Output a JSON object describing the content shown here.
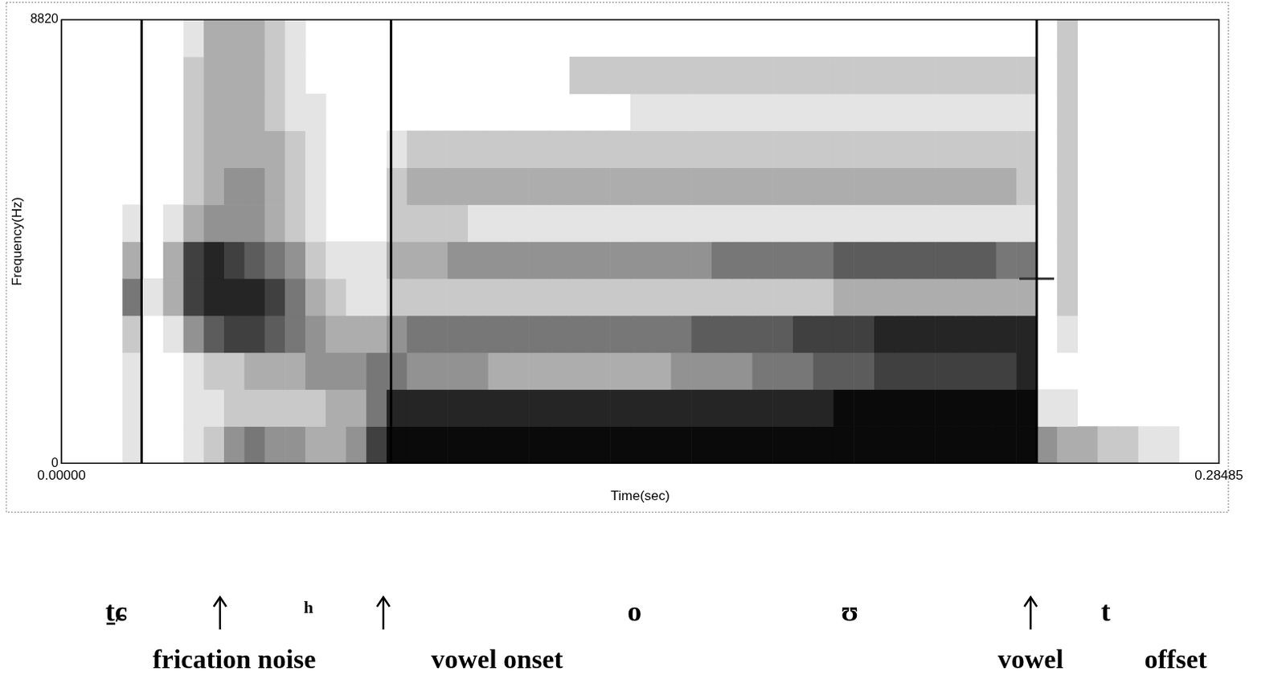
{
  "chart_data": {
    "type": "heatmap",
    "x_label": "Time(sec)",
    "y_label": "Frequency(Hz)",
    "xlim": [
      0,
      0.28485
    ],
    "ylim": [
      0,
      8820
    ],
    "xticks": [
      {
        "value": 0,
        "label": "0.00000"
      },
      {
        "value": 0.28485,
        "label": "0.28485"
      }
    ],
    "yticks": [
      0,
      8820
    ],
    "grid": false,
    "color": "#000000",
    "zlim": [
      0,
      9
    ],
    "time_edges": [
      0,
      0.005,
      0.01,
      0.015,
      0.02,
      0.025,
      0.03,
      0.035,
      0.04,
      0.045,
      0.05,
      0.055,
      0.06,
      0.065,
      0.07,
      0.075,
      0.08,
      0.085,
      0.09,
      0.095,
      0.1,
      0.105,
      0.11,
      0.115,
      0.12,
      0.125,
      0.13,
      0.135,
      0.14,
      0.145,
      0.15,
      0.155,
      0.16,
      0.165,
      0.17,
      0.175,
      0.18,
      0.185,
      0.19,
      0.195,
      0.2,
      0.205,
      0.21,
      0.215,
      0.22,
      0.225,
      0.23,
      0.235,
      0.24,
      0.245,
      0.25,
      0.255,
      0.26,
      0.265,
      0.27,
      0.275,
      0.28,
      0.285
    ],
    "freq_edges": [
      0,
      735,
      1470,
      2205,
      2940,
      3675,
      4410,
      5145,
      5880,
      6615,
      7350,
      8085,
      8820
    ],
    "cells": [
      [
        0,
        0,
        0,
        1,
        0,
        0,
        1,
        2,
        4,
        5,
        4,
        4,
        3,
        3,
        4,
        7,
        9,
        9,
        9,
        9,
        9,
        9,
        9,
        9,
        9,
        9,
        9,
        9,
        9,
        9,
        9,
        9,
        9,
        9,
        9,
        9,
        9,
        9,
        9,
        9,
        9,
        9,
        9,
        9,
        9,
        9,
        9,
        9,
        4,
        3,
        3,
        2,
        2,
        1,
        1,
        0,
        0
      ],
      [
        0,
        0,
        0,
        1,
        0,
        0,
        1,
        1,
        2,
        2,
        2,
        2,
        2,
        3,
        3,
        5,
        8,
        8,
        8,
        8,
        8,
        8,
        8,
        8,
        8,
        8,
        8,
        8,
        8,
        8,
        8,
        8,
        8,
        8,
        8,
        8,
        8,
        8,
        9,
        9,
        9,
        9,
        9,
        9,
        9,
        9,
        9,
        9,
        1,
        1,
        0,
        0,
        0,
        0,
        0,
        0,
        0
      ],
      [
        0,
        0,
        0,
        1,
        0,
        0,
        1,
        2,
        2,
        3,
        3,
        3,
        4,
        4,
        4,
        5,
        5,
        4,
        4,
        4,
        4,
        3,
        3,
        3,
        3,
        3,
        3,
        3,
        3,
        3,
        4,
        4,
        4,
        4,
        5,
        5,
        5,
        6,
        6,
        6,
        7,
        7,
        7,
        7,
        7,
        7,
        7,
        8,
        0,
        0,
        0,
        0,
        0,
        0,
        0,
        0,
        0
      ],
      [
        0,
        0,
        0,
        2,
        0,
        1,
        4,
        6,
        7,
        7,
        6,
        5,
        4,
        3,
        3,
        3,
        4,
        5,
        5,
        5,
        5,
        5,
        5,
        5,
        5,
        5,
        5,
        5,
        5,
        5,
        5,
        6,
        6,
        6,
        6,
        6,
        7,
        7,
        7,
        7,
        8,
        8,
        8,
        8,
        8,
        8,
        8,
        8,
        0,
        1,
        0,
        0,
        0,
        0,
        0,
        0,
        0
      ],
      [
        0,
        0,
        0,
        5,
        1,
        3,
        7,
        8,
        8,
        8,
        7,
        5,
        3,
        2,
        1,
        1,
        2,
        2,
        2,
        2,
        2,
        2,
        2,
        2,
        2,
        2,
        2,
        2,
        2,
        2,
        2,
        2,
        2,
        2,
        2,
        2,
        2,
        2,
        3,
        3,
        3,
        3,
        3,
        3,
        3,
        3,
        3,
        3,
        0,
        2,
        0,
        0,
        0,
        0,
        0,
        0,
        0
      ],
      [
        0,
        0,
        0,
        3,
        0,
        3,
        7,
        8,
        7,
        6,
        5,
        4,
        2,
        1,
        1,
        1,
        3,
        3,
        3,
        4,
        4,
        4,
        4,
        4,
        4,
        4,
        4,
        4,
        4,
        4,
        4,
        4,
        5,
        5,
        5,
        5,
        5,
        5,
        6,
        6,
        6,
        6,
        6,
        6,
        6,
        6,
        5,
        5,
        0,
        2,
        0,
        0,
        0,
        0,
        0,
        0,
        0
      ],
      [
        0,
        0,
        0,
        1,
        0,
        1,
        3,
        4,
        4,
        4,
        3,
        2,
        1,
        0,
        0,
        0,
        2,
        2,
        2,
        2,
        1,
        1,
        1,
        1,
        1,
        1,
        1,
        1,
        1,
        1,
        1,
        1,
        1,
        1,
        1,
        1,
        1,
        1,
        1,
        1,
        1,
        1,
        1,
        1,
        1,
        1,
        1,
        1,
        0,
        2,
        0,
        0,
        0,
        0,
        0,
        0,
        0
      ],
      [
        0,
        0,
        0,
        0,
        0,
        0,
        2,
        3,
        4,
        4,
        3,
        2,
        1,
        0,
        0,
        0,
        2,
        3,
        3,
        3,
        3,
        3,
        3,
        3,
        3,
        3,
        3,
        3,
        3,
        3,
        3,
        3,
        3,
        3,
        3,
        3,
        3,
        3,
        3,
        3,
        3,
        3,
        3,
        3,
        3,
        3,
        3,
        2,
        0,
        2,
        0,
        0,
        0,
        0,
        0,
        0,
        0
      ],
      [
        0,
        0,
        0,
        0,
        0,
        0,
        2,
        3,
        3,
        3,
        3,
        2,
        1,
        0,
        0,
        0,
        1,
        2,
        2,
        2,
        2,
        2,
        2,
        2,
        2,
        2,
        2,
        2,
        2,
        2,
        2,
        2,
        2,
        2,
        2,
        2,
        2,
        2,
        2,
        2,
        2,
        2,
        2,
        2,
        2,
        2,
        2,
        2,
        0,
        2,
        0,
        0,
        0,
        0,
        0,
        0,
        0
      ],
      [
        0,
        0,
        0,
        0,
        0,
        0,
        2,
        3,
        3,
        3,
        2,
        1,
        1,
        0,
        0,
        0,
        0,
        0,
        0,
        0,
        0,
        0,
        0,
        0,
        0,
        0,
        0,
        0,
        1,
        1,
        1,
        1,
        1,
        1,
        1,
        1,
        1,
        1,
        1,
        1,
        1,
        1,
        1,
        1,
        1,
        1,
        1,
        1,
        0,
        2,
        0,
        0,
        0,
        0,
        0,
        0,
        0
      ],
      [
        0,
        0,
        0,
        0,
        0,
        0,
        2,
        3,
        3,
        3,
        2,
        1,
        0,
        0,
        0,
        0,
        0,
        0,
        0,
        0,
        0,
        0,
        0,
        0,
        0,
        2,
        2,
        2,
        2,
        2,
        2,
        2,
        2,
        2,
        2,
        2,
        2,
        2,
        2,
        2,
        2,
        2,
        2,
        2,
        2,
        2,
        2,
        2,
        0,
        2,
        0,
        0,
        0,
        0,
        0,
        0,
        0
      ],
      [
        0,
        0,
        0,
        0,
        0,
        0,
        1,
        3,
        3,
        3,
        2,
        1,
        0,
        0,
        0,
        0,
        0,
        0,
        0,
        0,
        0,
        0,
        0,
        0,
        0,
        0,
        0,
        0,
        0,
        0,
        0,
        0,
        0,
        0,
        0,
        0,
        0,
        0,
        0,
        0,
        0,
        0,
        0,
        0,
        0,
        0,
        0,
        0,
        0,
        2,
        0,
        0,
        0,
        0,
        0,
        0,
        0
      ]
    ],
    "boundaries": [
      0.0197,
      0.0811,
      0.24
    ],
    "cursor": {
      "time": 0.24,
      "frequency": 3670
    },
    "segments": [
      {
        "text": "t̠ɕ",
        "time": 0.0135
      },
      {
        "text": "ʰ",
        "time": 0.0608
      },
      {
        "text": "o",
        "time": 0.141
      },
      {
        "text": "ʊ",
        "time": 0.194
      },
      {
        "text": "t",
        "time": 0.257
      }
    ],
    "arrows": [
      0.039,
      0.0792,
      0.2385
    ],
    "annotations": [
      {
        "text": "frication noise",
        "time": 0.0425
      },
      {
        "text": "vowel onset",
        "time": 0.1072
      },
      {
        "text": "vowel",
        "time": 0.2385
      },
      {
        "text": "offset",
        "time": 0.2742
      }
    ]
  }
}
